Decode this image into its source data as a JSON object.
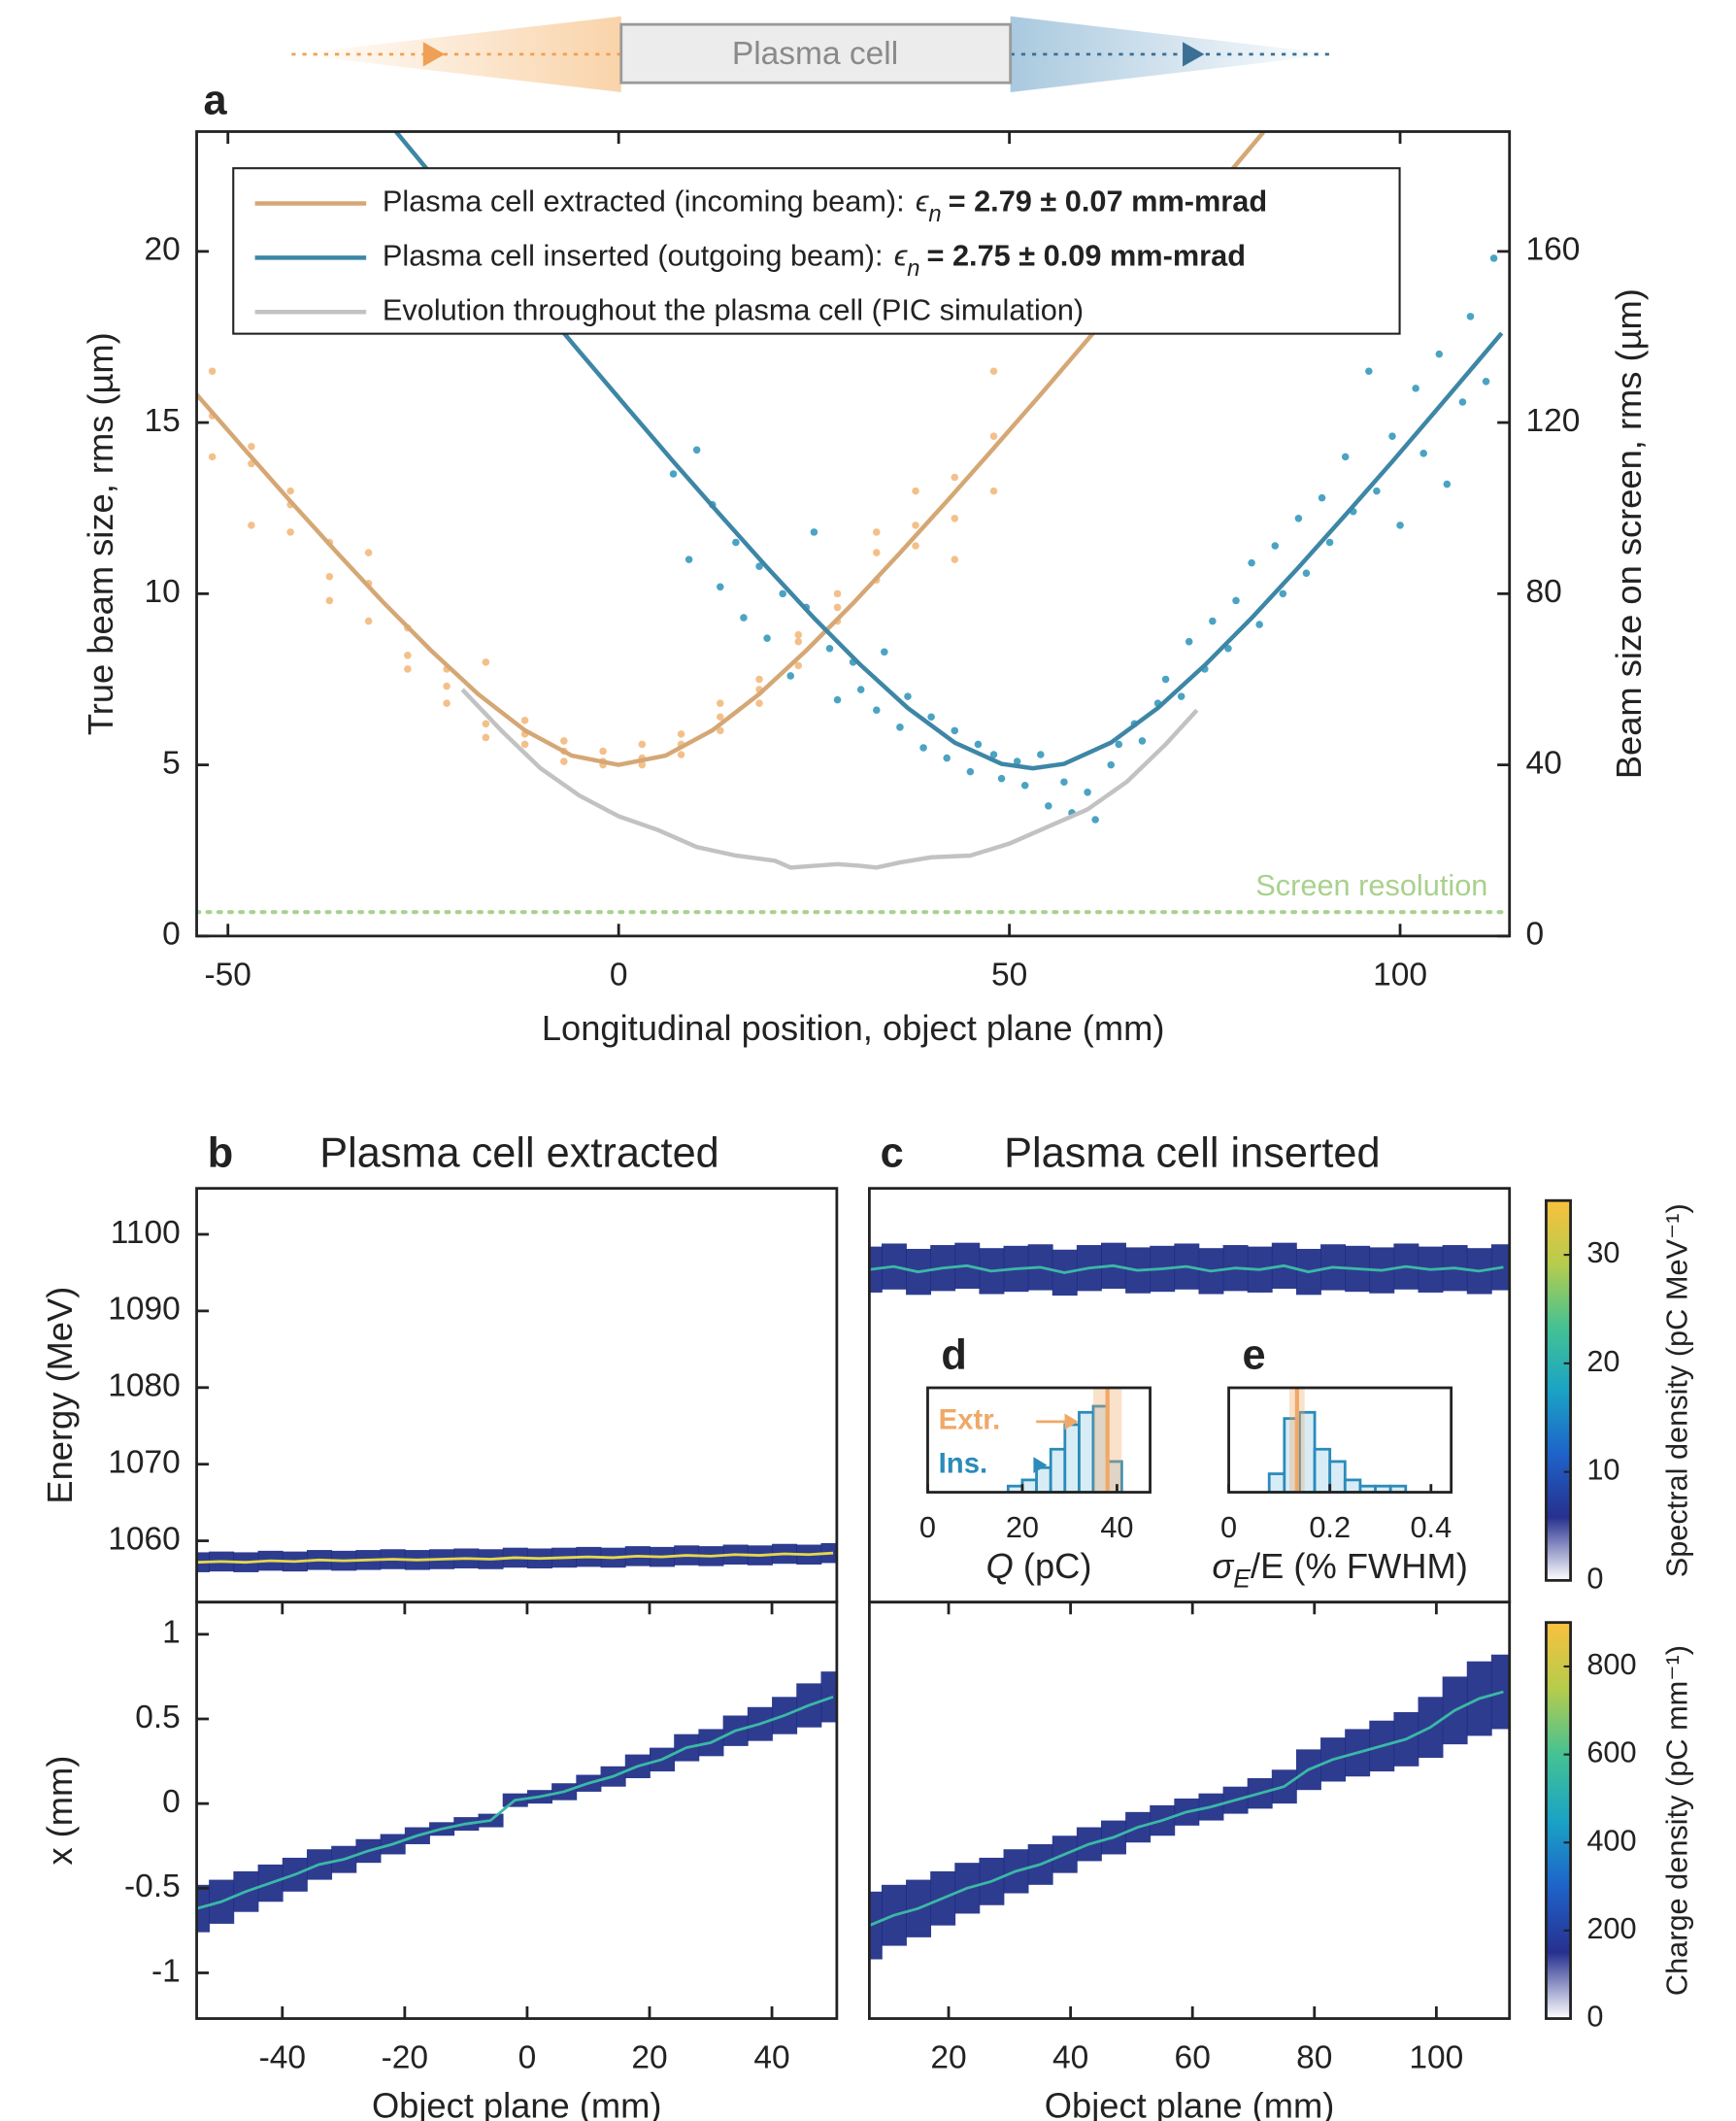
{
  "diagram_label": "Plasma cell",
  "chart_data": [
    {
      "type": "line",
      "panel": "a",
      "xlabel": "Longitudinal position, object plane (mm)",
      "ylabel": "True beam size, rms (µm)",
      "y2label": "Beam size on screen, rms (µm)",
      "xlim": [
        -54,
        114
      ],
      "xticks": [
        -50,
        0,
        50,
        100
      ],
      "ylim": [
        0,
        23.5
      ],
      "yticks": [
        0,
        5,
        10,
        15,
        20
      ],
      "y2lim": [
        0,
        188
      ],
      "y2ticks": [
        0,
        40,
        80,
        120,
        160
      ],
      "legend": "upper left",
      "reference_line": {
        "value": 0.7,
        "label": "Screen resolution",
        "color": "#a9d18e"
      },
      "series": [
        {
          "name": "Plasma cell extracted (incoming beam):",
          "symbol": "ϵ",
          "subscript": "n",
          "emittance": "= 2.79 ± 0.07 mm-mrad",
          "color": "#d5a775",
          "x": [
            -54,
            -48,
            -42,
            -36,
            -30,
            -24,
            -18,
            -12,
            -6,
            0,
            6,
            12,
            18,
            24,
            30,
            36,
            42,
            48,
            54,
            60,
            66,
            72,
            78,
            82.5
          ],
          "values": [
            15.82,
            14.25,
            12.7,
            11.19,
            9.72,
            8.34,
            7.07,
            6.01,
            5.27,
            5.0,
            5.27,
            6.01,
            7.07,
            8.34,
            9.72,
            11.19,
            12.7,
            14.25,
            15.82,
            17.42,
            19.02,
            20.63,
            22.26,
            23.48
          ]
        },
        {
          "name": "Plasma cell inserted (outgoing beam):",
          "symbol": "ϵ",
          "subscript": "n",
          "emittance": "= 2.75 ± 0.09 mm-mrad",
          "color": "#3d86a6",
          "x": [
            -28.5,
            -23,
            -17,
            -11,
            -5,
            1,
            7,
            13,
            19,
            25,
            31,
            37,
            43,
            49,
            53,
            57,
            63,
            69,
            75,
            81,
            87,
            93,
            99,
            105,
            113
          ],
          "values": [
            23.5,
            21.98,
            20.34,
            18.7,
            17.07,
            15.46,
            13.86,
            12.3,
            10.77,
            9.29,
            7.91,
            6.66,
            5.65,
            5.03,
            4.9,
            5.03,
            5.65,
            6.66,
            7.91,
            9.29,
            10.77,
            12.3,
            13.86,
            15.46,
            17.61
          ]
        },
        {
          "name": "Evolution throughout the plasma cell (PIC simulation)",
          "color": "#c2c2c2",
          "x": [
            -20,
            -15,
            -10,
            -5,
            0,
            5,
            10,
            15,
            20,
            22,
            25,
            28,
            31,
            33,
            36,
            40,
            45,
            50,
            55,
            60,
            65,
            70,
            74
          ],
          "values": [
            7.2,
            6.0,
            4.9,
            4.1,
            3.5,
            3.1,
            2.6,
            2.35,
            2.2,
            2.0,
            2.05,
            2.1,
            2.05,
            2.0,
            2.15,
            2.3,
            2.35,
            2.7,
            3.2,
            3.7,
            4.5,
            5.6,
            6.6
          ]
        },
        {
          "mode": "markers",
          "color": "#f3c08a",
          "x": [
            -52,
            -52,
            -52,
            -47,
            -47,
            -47,
            -42,
            -42,
            -42,
            -37,
            -37,
            -37,
            -32,
            -32,
            -32,
            -27,
            -27,
            -27,
            -22,
            -22,
            -22,
            -17,
            -17,
            -17,
            -12,
            -12,
            -12,
            -7,
            -7,
            -7,
            -2,
            -2,
            -2,
            3,
            3,
            3,
            8,
            8,
            8,
            13,
            13,
            13,
            18,
            18,
            18,
            23,
            23,
            23,
            28,
            28,
            28,
            33,
            33,
            33,
            38,
            38,
            38,
            43,
            43,
            43,
            48,
            48,
            48
          ],
          "values": [
            15.2,
            14.0,
            16.5,
            13.8,
            12.0,
            14.3,
            12.6,
            11.8,
            13.0,
            11.5,
            9.8,
            10.5,
            10.3,
            11.2,
            9.2,
            9.0,
            8.2,
            7.8,
            7.8,
            6.8,
            7.3,
            6.2,
            5.8,
            8.0,
            5.9,
            6.3,
            5.6,
            5.4,
            5.7,
            5.1,
            5.1,
            5.4,
            5.0,
            5.2,
            5.6,
            5.0,
            5.6,
            5.9,
            5.3,
            6.4,
            6.0,
            6.8,
            7.5,
            6.8,
            7.2,
            8.6,
            7.9,
            8.8,
            10.0,
            9.2,
            9.6,
            11.2,
            10.4,
            11.8,
            12.0,
            11.4,
            13.0,
            13.4,
            12.2,
            11.0,
            14.6,
            16.5,
            13.0
          ]
        },
        {
          "mode": "markers",
          "color": "#4ba3c3",
          "x": [
            7,
            9,
            10,
            12,
            13,
            15,
            16,
            18,
            19,
            21,
            22,
            24,
            25,
            27,
            28,
            30,
            31,
            33,
            34,
            36,
            37,
            39,
            40,
            42,
            43,
            45,
            46,
            48,
            49,
            51,
            52,
            54,
            55,
            57,
            58,
            60,
            61,
            63,
            64,
            66,
            67,
            69,
            70,
            72,
            73,
            75,
            76,
            78,
            79,
            81,
            82,
            84,
            85,
            87,
            88,
            90,
            91,
            93,
            94,
            96,
            97,
            99,
            100,
            102,
            103,
            105,
            106,
            108,
            109,
            111,
            112
          ],
          "values": [
            13.5,
            11.0,
            14.2,
            12.6,
            10.2,
            11.5,
            9.3,
            10.8,
            8.7,
            10.0,
            7.6,
            9.6,
            11.8,
            8.4,
            6.9,
            8.0,
            7.2,
            6.6,
            8.3,
            6.1,
            7.0,
            5.5,
            6.4,
            5.2,
            6.0,
            4.8,
            5.6,
            5.3,
            4.6,
            5.1,
            4.4,
            5.3,
            3.8,
            4.5,
            3.6,
            4.2,
            3.4,
            5.0,
            5.6,
            6.2,
            5.7,
            6.8,
            7.5,
            7.0,
            8.6,
            7.8,
            9.2,
            8.4,
            9.8,
            10.9,
            9.1,
            11.4,
            10.0,
            12.2,
            10.6,
            12.8,
            11.5,
            14.0,
            12.4,
            16.5,
            13.0,
            14.6,
            12.0,
            16.0,
            14.1,
            17.0,
            13.2,
            15.6,
            18.1,
            16.2,
            19.8
          ]
        }
      ]
    },
    {
      "type": "band",
      "panel": "b",
      "title": "Plasma cell extracted",
      "ylabel": "Energy (MeV)",
      "xlim": [
        -54,
        50.6
      ],
      "ylim": [
        1052,
        1106
      ],
      "yticks": [
        1060,
        1070,
        1080,
        1090,
        1100
      ],
      "color": "#1c2b85",
      "center_color": "#e4d84a",
      "x": [
        -54,
        -50,
        -46,
        -42,
        -38,
        -34,
        -30,
        -26,
        -22,
        -18,
        -14,
        -10,
        -6,
        -2,
        2,
        6,
        10,
        14,
        18,
        22,
        26,
        30,
        34,
        38,
        42,
        46,
        50
      ],
      "values": [
        1057.2,
        1057.3,
        1057.2,
        1057.4,
        1057.3,
        1057.5,
        1057.4,
        1057.5,
        1057.6,
        1057.5,
        1057.6,
        1057.7,
        1057.6,
        1057.8,
        1057.7,
        1057.8,
        1057.9,
        1057.8,
        1058.0,
        1057.9,
        1058.1,
        1058.0,
        1058.2,
        1058.1,
        1058.3,
        1058.2,
        1058.4
      ],
      "spread": [
        1.3,
        1.3,
        1.3,
        1.3,
        1.3,
        1.3,
        1.3,
        1.3,
        1.3,
        1.3,
        1.3,
        1.3,
        1.3,
        1.3,
        1.3,
        1.3,
        1.3,
        1.3,
        1.3,
        1.3,
        1.3,
        1.3,
        1.3,
        1.3,
        1.3,
        1.3,
        1.3
      ]
    },
    {
      "type": "band",
      "ylabel": "x (mm)",
      "xlabel": "Object plane (mm)",
      "xlim": [
        -54,
        50.6
      ],
      "xticks": [
        -40,
        -20,
        0,
        20,
        40
      ],
      "ylim": [
        -1.27,
        1.19
      ],
      "yticks": [
        -1,
        -0.5,
        0,
        0.5,
        1
      ],
      "color": "#1c2b85",
      "center_color": "#3bb8a6",
      "x": [
        -54,
        -50,
        -46,
        -42,
        -38,
        -34,
        -30,
        -26,
        -22,
        -18,
        -14,
        -10,
        -6,
        -2,
        2,
        6,
        10,
        14,
        18,
        22,
        26,
        30,
        34,
        38,
        42,
        46,
        50
      ],
      "values": [
        -0.62,
        -0.58,
        -0.52,
        -0.47,
        -0.42,
        -0.36,
        -0.33,
        -0.28,
        -0.24,
        -0.19,
        -0.15,
        -0.12,
        -0.1,
        0.02,
        0.04,
        0.07,
        0.12,
        0.16,
        0.22,
        0.26,
        0.33,
        0.36,
        0.43,
        0.47,
        0.52,
        0.58,
        0.63
      ],
      "spread": [
        0.14,
        0.13,
        0.12,
        0.11,
        0.1,
        0.09,
        0.08,
        0.07,
        0.06,
        0.05,
        0.04,
        0.04,
        0.04,
        0.04,
        0.04,
        0.05,
        0.05,
        0.06,
        0.07,
        0.07,
        0.08,
        0.08,
        0.09,
        0.1,
        0.11,
        0.13,
        0.15
      ]
    },
    {
      "type": "band",
      "panel": "c",
      "title": "Plasma cell inserted",
      "xlim": [
        7,
        112
      ],
      "ylim": [
        1052,
        1106
      ],
      "color": "#1c2b85",
      "center_color": "#3bb8a6",
      "x": [
        7,
        11,
        15,
        19,
        23,
        27,
        31,
        35,
        39,
        43,
        47,
        51,
        55,
        59,
        63,
        67,
        71,
        75,
        79,
        83,
        87,
        91,
        95,
        99,
        103,
        107,
        111
      ],
      "values": [
        1095.4,
        1095.8,
        1095.1,
        1095.6,
        1095.9,
        1095.2,
        1095.5,
        1095.7,
        1095.0,
        1095.6,
        1095.9,
        1095.3,
        1095.5,
        1095.8,
        1095.2,
        1095.6,
        1095.4,
        1095.9,
        1095.1,
        1095.7,
        1095.5,
        1095.3,
        1095.8,
        1095.4,
        1095.6,
        1095.2,
        1095.7
      ],
      "spread": [
        3,
        3,
        3,
        3,
        3,
        3,
        3,
        3,
        3,
        3,
        3,
        3,
        3,
        3,
        3,
        3,
        3,
        3,
        3,
        3,
        3,
        3,
        3,
        3,
        3,
        3,
        3
      ],
      "colorbar": {
        "label": "Spectral density (pC MeV⁻¹)",
        "lim": [
          0,
          35
        ],
        "ticks": [
          0,
          10,
          20,
          30
        ],
        "colors": [
          "#ffffff",
          "#27308f",
          "#1e63c9",
          "#1aa3c5",
          "#45c293",
          "#b6cc4c",
          "#f9c13e"
        ]
      }
    },
    {
      "type": "band",
      "xlabel": "Object plane (mm)",
      "xlim": [
        7,
        112
      ],
      "xticks": [
        20,
        40,
        60,
        80,
        100
      ],
      "ylim": [
        -1.27,
        1.19
      ],
      "color": "#1c2b85",
      "center_color": "#3bb8a6",
      "x": [
        7,
        11,
        15,
        19,
        23,
        27,
        31,
        35,
        39,
        43,
        47,
        51,
        55,
        59,
        63,
        67,
        71,
        75,
        79,
        83,
        87,
        91,
        95,
        99,
        103,
        107,
        111
      ],
      "values": [
        -0.72,
        -0.66,
        -0.62,
        -0.56,
        -0.5,
        -0.46,
        -0.4,
        -0.36,
        -0.3,
        -0.24,
        -0.2,
        -0.14,
        -0.1,
        -0.05,
        -0.02,
        0.02,
        0.06,
        0.1,
        0.2,
        0.26,
        0.3,
        0.34,
        0.38,
        0.45,
        0.55,
        0.62,
        0.66
      ],
      "spread": [
        0.2,
        0.18,
        0.17,
        0.16,
        0.15,
        0.14,
        0.13,
        0.12,
        0.11,
        0.1,
        0.1,
        0.09,
        0.09,
        0.08,
        0.08,
        0.08,
        0.09,
        0.1,
        0.12,
        0.13,
        0.14,
        0.15,
        0.16,
        0.18,
        0.2,
        0.22,
        0.22
      ],
      "colorbar": {
        "label": "Charge density (pC mm⁻¹)",
        "lim": [
          0,
          900
        ],
        "ticks": [
          0,
          200,
          400,
          600,
          800
        ],
        "colors": [
          "#ffffff",
          "#27308f",
          "#1e63c9",
          "#1aa3c5",
          "#45c293",
          "#b6cc4c",
          "#f9c13e"
        ]
      }
    },
    {
      "type": "histogram",
      "panel": "d",
      "xlabel_parts": [
        "Q",
        " (pC)"
      ],
      "xlim": [
        0,
        47
      ],
      "xticks": [
        0,
        20,
        40
      ],
      "ylim": [
        0,
        17
      ],
      "bins": [
        17,
        20,
        23,
        26,
        29,
        32,
        35,
        38,
        41
      ],
      "counts": [
        1,
        2,
        4,
        7,
        11,
        13,
        14,
        5
      ],
      "color": "#d8ecf6",
      "edge_color": "#2b8bb9",
      "reference_band": {
        "range": [
          35,
          41
        ],
        "value": 38,
        "color": "#f0a868"
      },
      "annotations": [
        {
          "text": "Extr.",
          "color": "#f0a868"
        },
        {
          "text": "Ins.",
          "color": "#2b8bb9"
        }
      ]
    },
    {
      "type": "histogram",
      "panel": "e",
      "xlabel_parts": [
        "σ",
        "E",
        "/E (% FWHM)"
      ],
      "xlim": [
        0,
        0.44
      ],
      "xticks": [
        0,
        0.2,
        0.4
      ],
      "ylim": [
        0,
        17
      ],
      "bins": [
        0.08,
        0.11,
        0.14,
        0.17,
        0.2,
        0.23,
        0.26,
        0.29,
        0.32,
        0.35
      ],
      "counts": [
        3,
        12,
        13,
        7,
        5,
        2,
        1,
        1,
        1
      ],
      "color": "#d8ecf6",
      "edge_color": "#2b8bb9",
      "reference_band": {
        "range": [
          0.12,
          0.15
        ],
        "value": 0.135,
        "color": "#f0a868"
      }
    }
  ]
}
